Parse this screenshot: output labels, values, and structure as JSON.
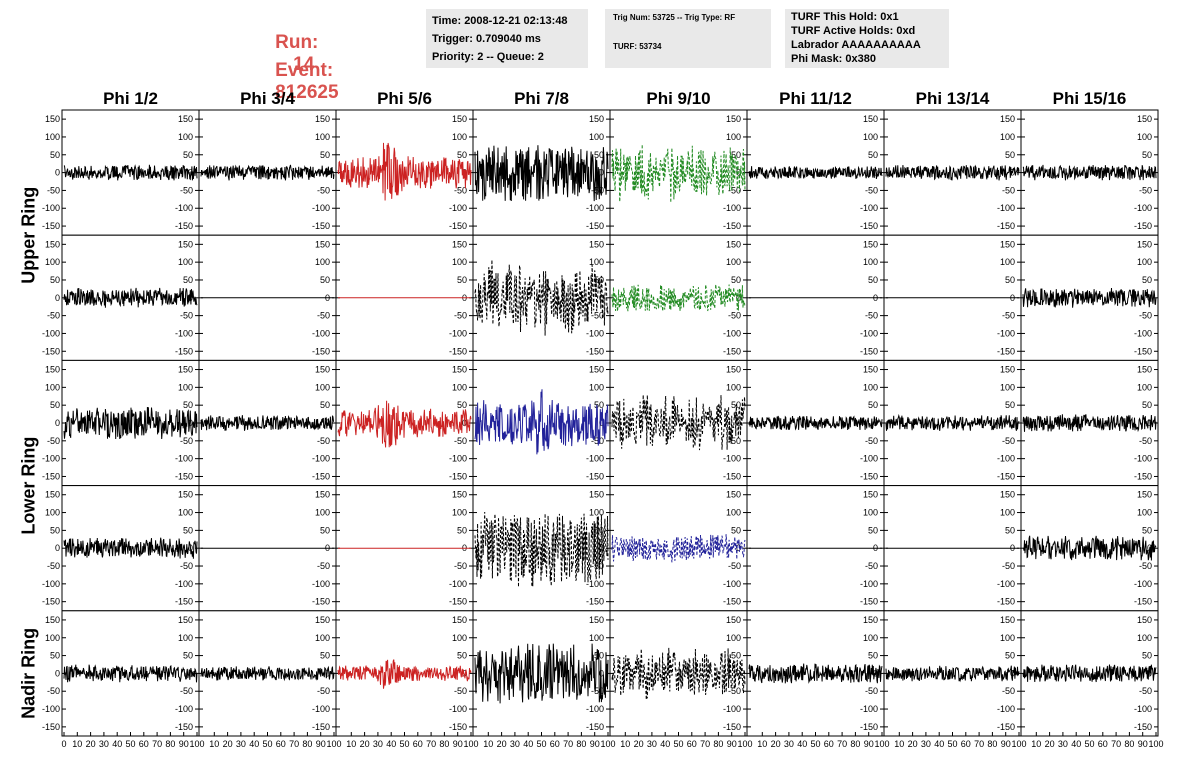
{
  "header": {
    "run_label": "Run:",
    "run_value": "14",
    "event_label": "Event:",
    "event_value": "812625",
    "accent_color": "#d9534f",
    "box1": [
      "Time: 2008-12-21 02:13:48",
      "Trigger: 0.709040 ms",
      "Priority: 2 -- Queue: 2"
    ],
    "box2": [
      "Trig Num: 53725 -- Trig Type: RF",
      "TURF: 53734"
    ],
    "box3": [
      "TURF This Hold: 0x1",
      "TURF Active Holds: 0xd",
      "Labrador AAAAAAAAAA",
      "Phi Mask: 0x380"
    ]
  },
  "chart_data": {
    "type": "line",
    "columns": [
      "Phi 1/2",
      "Phi 3/4",
      "Phi 5/6",
      "Phi 7/8",
      "Phi 9/10",
      "Phi 11/12",
      "Phi 13/14",
      "Phi 15/16"
    ],
    "ring_labels": [
      {
        "label": "Upper Ring",
        "rows": [
          0,
          1
        ]
      },
      {
        "label": "Lower Ring",
        "rows": [
          2,
          3
        ]
      },
      {
        "label": "Nadir Ring",
        "rows": [
          4
        ]
      }
    ],
    "xlim": [
      0,
      100
    ],
    "ylim": [
      -170,
      170
    ],
    "x_ticks": [
      "0",
      "10",
      "20",
      "30",
      "40",
      "50",
      "60",
      "70",
      "80",
      "90",
      "100"
    ],
    "y_ticks": [
      150,
      100,
      50,
      0,
      -50,
      -100,
      -150
    ],
    "colors": {
      "black": "#000000",
      "red": "#cc2222",
      "green": "#228b22",
      "blue": "#22229a"
    },
    "panels": [
      [
        {
          "style": "solid",
          "color": "black",
          "amp": 22,
          "env": "flat"
        },
        {
          "style": "solid",
          "color": "black",
          "amp": 22,
          "env": "flat"
        },
        {
          "style": "solid",
          "color": "red",
          "amp": 45,
          "env": "pulse",
          "peak": 38,
          "pamp": 110
        },
        {
          "style": "solid",
          "color": "black",
          "amp": 80,
          "env": "flat"
        },
        {
          "style": "dashed",
          "color": "green",
          "amp": 85,
          "env": "wave"
        },
        {
          "style": "solid",
          "color": "black",
          "amp": 18,
          "env": "flat"
        },
        {
          "style": "solid",
          "color": "black",
          "amp": 22,
          "env": "flat"
        },
        {
          "style": "solid",
          "color": "black",
          "amp": 22,
          "env": "flat"
        }
      ],
      [
        {
          "style": "solid",
          "color": "black",
          "amp": 28,
          "env": "flat"
        },
        {
          "style": "flat",
          "color": "black"
        },
        {
          "style": "flat",
          "color": "red"
        },
        {
          "style": "dashed",
          "color": "black",
          "amp": 110,
          "env": "wave"
        },
        {
          "style": "dashed",
          "color": "green",
          "amp": 38,
          "env": "flat"
        },
        {
          "style": "flat",
          "color": "black"
        },
        {
          "style": "flat",
          "color": "black"
        },
        {
          "style": "solid",
          "color": "black",
          "amp": 28,
          "env": "flat"
        }
      ],
      [
        {
          "style": "solid",
          "color": "black",
          "amp": 45,
          "env": "flat"
        },
        {
          "style": "solid",
          "color": "black",
          "amp": 22,
          "env": "flat"
        },
        {
          "style": "solid",
          "color": "red",
          "amp": 40,
          "env": "pulse",
          "peak": 38,
          "pamp": 85
        },
        {
          "style": "solid",
          "color": "blue",
          "amp": 65,
          "env": "pulse",
          "peak": 50,
          "pamp": 95
        },
        {
          "style": "dashed",
          "color": "black",
          "amp": 85,
          "env": "wave"
        },
        {
          "style": "solid",
          "color": "black",
          "amp": 20,
          "env": "flat"
        },
        {
          "style": "solid",
          "color": "black",
          "amp": 22,
          "env": "flat"
        },
        {
          "style": "solid",
          "color": "black",
          "amp": 25,
          "env": "flat"
        }
      ],
      [
        {
          "style": "solid",
          "color": "black",
          "amp": 30,
          "env": "flat"
        },
        {
          "style": "flat",
          "color": "black"
        },
        {
          "style": "flat",
          "color": "red"
        },
        {
          "style": "dashed",
          "color": "black",
          "amp": 110,
          "env": "flat"
        },
        {
          "style": "dashed",
          "color": "blue",
          "amp": 40,
          "env": "flat"
        },
        {
          "style": "flat",
          "color": "black"
        },
        {
          "style": "flat",
          "color": "black"
        },
        {
          "style": "solid",
          "color": "black",
          "amp": 35,
          "env": "flat"
        }
      ],
      [
        {
          "style": "solid",
          "color": "black",
          "amp": 25,
          "env": "flat"
        },
        {
          "style": "solid",
          "color": "black",
          "amp": 20,
          "env": "flat"
        },
        {
          "style": "solid",
          "color": "red",
          "amp": 22,
          "env": "pulse",
          "peak": 38,
          "pamp": 50
        },
        {
          "style": "solid",
          "color": "black",
          "amp": 85,
          "env": "flat"
        },
        {
          "style": "dashed",
          "color": "black",
          "amp": 75,
          "env": "wave"
        },
        {
          "style": "solid",
          "color": "black",
          "amp": 28,
          "env": "flat"
        },
        {
          "style": "solid",
          "color": "black",
          "amp": 22,
          "env": "flat"
        },
        {
          "style": "solid",
          "color": "black",
          "amp": 25,
          "env": "flat"
        }
      ]
    ]
  }
}
